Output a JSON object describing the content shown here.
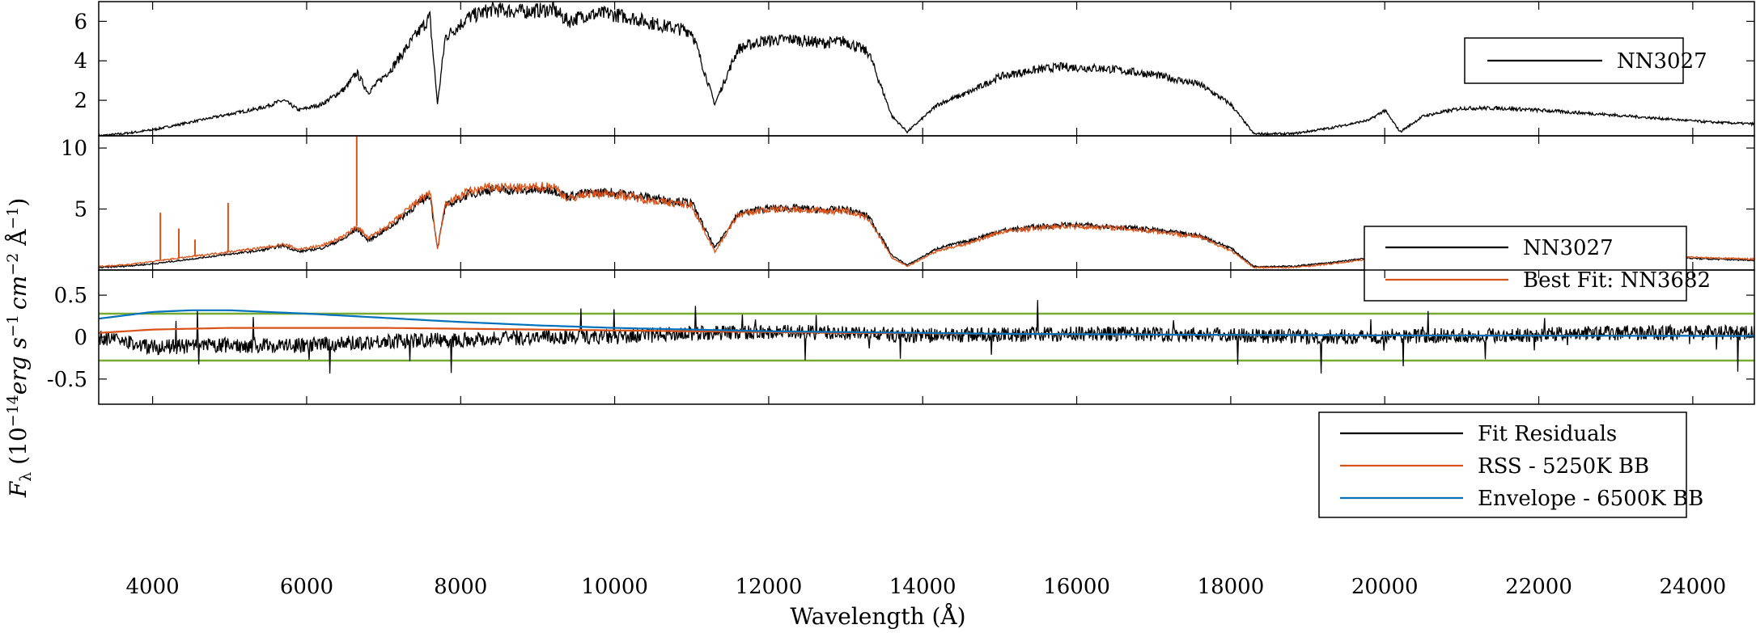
{
  "chart_data": {
    "type": "line",
    "shared_xaxis": {
      "label": "Wavelength (Å)",
      "xlim": [
        3300,
        24800
      ],
      "ticks": [
        4000,
        6000,
        8000,
        10000,
        12000,
        14000,
        16000,
        18000,
        20000,
        22000,
        24000
      ],
      "tick_labels": [
        "4000",
        "6000",
        "8000",
        "10000",
        "12000",
        "14000",
        "16000",
        "18000",
        "20000",
        "22000",
        "24000"
      ]
    },
    "shared_ylabel": "F_λ (10^-14 erg s^-1 cm^-2 Å^-1)",
    "ylabel_parts": {
      "base": "F",
      "sub": "λ",
      "lead": " (10",
      "exp1": "−14",
      "mid": "erg s",
      "exp2": "−1",
      "cm": "cm",
      "exp3": "−2",
      "ang": " Å",
      "exp4": "−1",
      "close": ")"
    },
    "panels": [
      {
        "ylim": [
          0.2,
          7.0
        ],
        "yticks": [
          2,
          4,
          6
        ],
        "ytick_labels": [
          "2",
          "4",
          "6"
        ],
        "legend": {
          "placement": "top-right",
          "entries": [
            "NN3027"
          ]
        },
        "series": [
          {
            "name": "NN3027",
            "color": "#000000",
            "x": [
              3300,
              3600,
              4000,
              4500,
              5000,
              5400,
              5700,
              5900,
              6200,
              6500,
              6650,
              6800,
              7100,
              7400,
              7600,
              7700,
              7800,
              8100,
              8400,
              8800,
              9200,
              9400,
              9600,
              9900,
              10200,
              10600,
              11000,
              11300,
              11600,
              11900,
              12300,
              12700,
              13000,
              13300,
              13600,
              13800,
              14200,
              14600,
              15000,
              15400,
              15800,
              16400,
              17000,
              17600,
              18000,
              18300,
              18800,
              19300,
              19800,
              20000,
              20200,
              20500,
              21000,
              21500,
              22000,
              22800,
              23500,
              24200,
              24800
            ],
            "y": [
              0.2,
              0.3,
              0.5,
              0.9,
              1.3,
              1.6,
              2.0,
              1.5,
              1.8,
              2.6,
              3.4,
              2.4,
              3.6,
              5.2,
              6.2,
              1.8,
              5.2,
              6.2,
              6.6,
              6.5,
              6.6,
              6.0,
              6.3,
              6.4,
              6.2,
              5.8,
              5.5,
              1.8,
              4.6,
              5.0,
              5.1,
              4.9,
              5.0,
              4.4,
              1.2,
              0.4,
              1.8,
              2.4,
              3.2,
              3.5,
              3.7,
              3.6,
              3.3,
              2.8,
              1.8,
              0.3,
              0.3,
              0.6,
              1.0,
              1.5,
              0.4,
              1.2,
              1.6,
              1.6,
              1.5,
              1.3,
              1.1,
              0.9,
              0.8
            ]
          }
        ]
      },
      {
        "ylim": [
          0,
          11.0
        ],
        "yticks": [
          5,
          10
        ],
        "ytick_labels": [
          "5",
          "10"
        ],
        "legend": {
          "placement": "top-right",
          "entries": [
            "NN3027",
            "Best Fit: NN3682"
          ]
        },
        "series": [
          {
            "name": "NN3027",
            "color": "#000000",
            "x": [
              3300,
              3600,
              4000,
              4500,
              5000,
              5400,
              5700,
              5900,
              6200,
              6500,
              6650,
              6800,
              7100,
              7400,
              7600,
              7700,
              7800,
              8100,
              8400,
              8800,
              9200,
              9400,
              9600,
              9900,
              10200,
              10600,
              11000,
              11300,
              11600,
              11900,
              12300,
              12700,
              13000,
              13300,
              13600,
              13800,
              14200,
              14600,
              15000,
              15400,
              15800,
              16400,
              17000,
              17600,
              18000,
              18300,
              18800,
              19300,
              19800,
              20000,
              20200,
              20500,
              21000,
              21500,
              22000,
              22800,
              23500,
              24200,
              24800
            ],
            "y": [
              0.2,
              0.3,
              0.5,
              0.9,
              1.3,
              1.6,
              2.0,
              1.5,
              1.8,
              2.6,
              3.4,
              2.4,
              3.6,
              5.2,
              6.2,
              1.8,
              5.2,
              6.2,
              6.6,
              6.5,
              6.6,
              6.0,
              6.3,
              6.4,
              6.2,
              5.8,
              5.5,
              1.8,
              4.6,
              5.0,
              5.1,
              4.9,
              5.0,
              4.4,
              1.2,
              0.4,
              1.8,
              2.4,
              3.2,
              3.5,
              3.7,
              3.6,
              3.3,
              2.8,
              1.8,
              0.3,
              0.3,
              0.6,
              1.0,
              1.5,
              0.4,
              1.2,
              1.6,
              1.6,
              1.5,
              1.3,
              1.1,
              0.9,
              0.8
            ]
          },
          {
            "name": "Best Fit: NN3682",
            "color": "#d95319",
            "x": [
              3300,
              3600,
              4000,
              4500,
              5000,
              5400,
              5700,
              5900,
              6200,
              6500,
              6650,
              6800,
              7100,
              7400,
              7600,
              7700,
              7800,
              8100,
              8400,
              8800,
              9200,
              9400,
              9600,
              9900,
              10200,
              10600,
              11000,
              11300,
              11600,
              11900,
              12300,
              12700,
              13000,
              13300,
              13600,
              13800,
              14200,
              14600,
              15000,
              15400,
              15800,
              16400,
              17000,
              17600,
              18000,
              18300,
              18800,
              19300,
              19800,
              20000,
              20200,
              20500,
              21000,
              21500,
              22000,
              22800,
              23500,
              24200,
              24800
            ],
            "y": [
              0.3,
              0.4,
              0.7,
              1.1,
              1.5,
              1.8,
              2.1,
              1.7,
              2.0,
              2.8,
              3.6,
              2.6,
              3.8,
              5.4,
              6.4,
              1.6,
              5.4,
              6.4,
              6.8,
              6.7,
              6.9,
              5.8,
              6.2,
              6.3,
              6.0,
              5.6,
              5.3,
              1.5,
              4.5,
              4.9,
              5.0,
              4.8,
              4.9,
              4.2,
              1.0,
              0.3,
              1.6,
              2.2,
              3.1,
              3.4,
              3.6,
              3.5,
              3.2,
              2.7,
              1.6,
              0.2,
              0.2,
              0.5,
              0.9,
              1.4,
              0.5,
              1.3,
              1.7,
              1.7,
              1.6,
              1.4,
              1.2,
              1.0,
              0.9
            ],
            "emission_lines": [
              {
                "x": 4100,
                "y": 4.7
              },
              {
                "x": 4340,
                "y": 3.4
              },
              {
                "x": 4550,
                "y": 2.5
              },
              {
                "x": 4980,
                "y": 5.5
              },
              {
                "x": 6650,
                "y": 11.0
              }
            ]
          }
        ]
      },
      {
        "ylim": [
          -0.8,
          0.8
        ],
        "yticks": [
          -0.5,
          0,
          0.5
        ],
        "ytick_labels": [
          "-0.5",
          "0",
          "0.5"
        ],
        "legend": {
          "placement": "right",
          "entries": [
            "Fit Residuals",
            "RSS - 5250K BB",
            "Envelope - 6500K BB"
          ]
        },
        "threshold_lines": {
          "color": "#77ac30",
          "values": [
            0.28,
            -0.28
          ]
        },
        "series": [
          {
            "name": "Fit Residuals",
            "color": "#000000",
            "x": [
              3300,
              4000,
              5000,
              6000,
              7000,
              8000,
              9000,
              10000,
              11000,
              12000,
              13000,
              14000,
              15000,
              16000,
              17000,
              18000,
              19000,
              20000,
              21000,
              22000,
              23000,
              24000,
              24800
            ],
            "y": [
              0.0,
              -0.12,
              -0.1,
              -0.1,
              -0.05,
              -0.03,
              0.0,
              0.0,
              0.05,
              0.06,
              0.05,
              0.02,
              0.03,
              0.04,
              0.04,
              0.03,
              0.0,
              0.01,
              0.02,
              0.03,
              0.05,
              0.05,
              0.05
            ]
          },
          {
            "name": "RSS - 5250K BB",
            "color": "#d95319",
            "x": [
              3300,
              4000,
              5000,
              6000,
              7000,
              8000,
              9000,
              10000,
              11000,
              12000,
              13000,
              14000,
              15000,
              16000,
              17000,
              18000,
              19000,
              20000,
              21000,
              22000,
              23000,
              24000,
              24800
            ],
            "y": [
              0.05,
              0.09,
              0.11,
              0.11,
              0.11,
              0.1,
              0.09,
              0.08,
              0.07,
              0.06,
              0.05,
              0.045,
              0.04,
              0.035,
              0.03,
              0.027,
              0.024,
              0.022,
              0.02,
              0.018,
              0.016,
              0.015,
              0.014
            ]
          },
          {
            "name": "Envelope - 6500K BB",
            "color": "#0072bd",
            "x": [
              3300,
              4000,
              4500,
              5000,
              6000,
              7000,
              8000,
              9000,
              10000,
              11000,
              12000,
              13000,
              14000,
              15000,
              16000,
              17000,
              18000,
              19000,
              20000,
              21000,
              22000,
              23000,
              24000,
              24800
            ],
            "y": [
              0.22,
              0.3,
              0.32,
              0.32,
              0.28,
              0.23,
              0.18,
              0.14,
              0.11,
              0.09,
              0.07,
              0.06,
              0.05,
              0.04,
              0.035,
              0.03,
              0.027,
              0.024,
              0.021,
              0.019,
              0.017,
              0.016,
              0.015,
              0.014
            ]
          }
        ]
      }
    ]
  }
}
